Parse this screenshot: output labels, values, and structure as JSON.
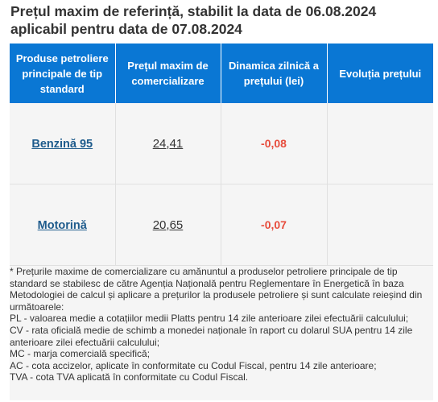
{
  "heading": {
    "line1": "Prețul maxim de referință, stabilit la data de 06.08.2024",
    "line2": "aplicabil pentru data de 07.08.2024"
  },
  "table": {
    "headers": [
      "Produse petroliere principale de tip standard",
      "Prețul maxim de comercializare",
      "Dinamica zilnică a prețului (lei)",
      "Evoluția prețului"
    ],
    "rows": [
      {
        "product": "Benzină 95",
        "price": "24,41",
        "change": "-0,08",
        "trend": ""
      },
      {
        "product": "Motorină",
        "price": "20,65",
        "change": "-0,07",
        "trend": ""
      }
    ]
  },
  "footnote": {
    "intro": "* Prețurile maxime de comercializare cu amănuntul a produselor petroliere principale de tip standard se stabilesc de către Agenția Națională pentru Reglementare în Energetică în baza Metodologiei de calcul și aplicare a prețurilor la produsele petroliere și sunt calculate reieșind din următoarele:",
    "items": [
      "PL - valoarea medie a cotațiilor medii Platts pentru 14 zile anterioare zilei efectuării calculului;",
      "CV - rata oficială medie de schimb a monedei naționale în raport cu dolarul SUA pentru 14 zile anterioare zilei efectuării calculului;",
      "MC - marja comercială specifică;",
      "AC - cota accizelor, aplicate în conformitate cu Codul Fiscal, pentru 14 zile anterioare;",
      "TVA - cota TVA aplicată în conformitate cu Codul Fiscal."
    ]
  },
  "colors": {
    "header_bg": "#0a77d4",
    "panel_bg": "#f5f5f5",
    "link": "#1e5b8c",
    "negative": "#e74c3c"
  }
}
